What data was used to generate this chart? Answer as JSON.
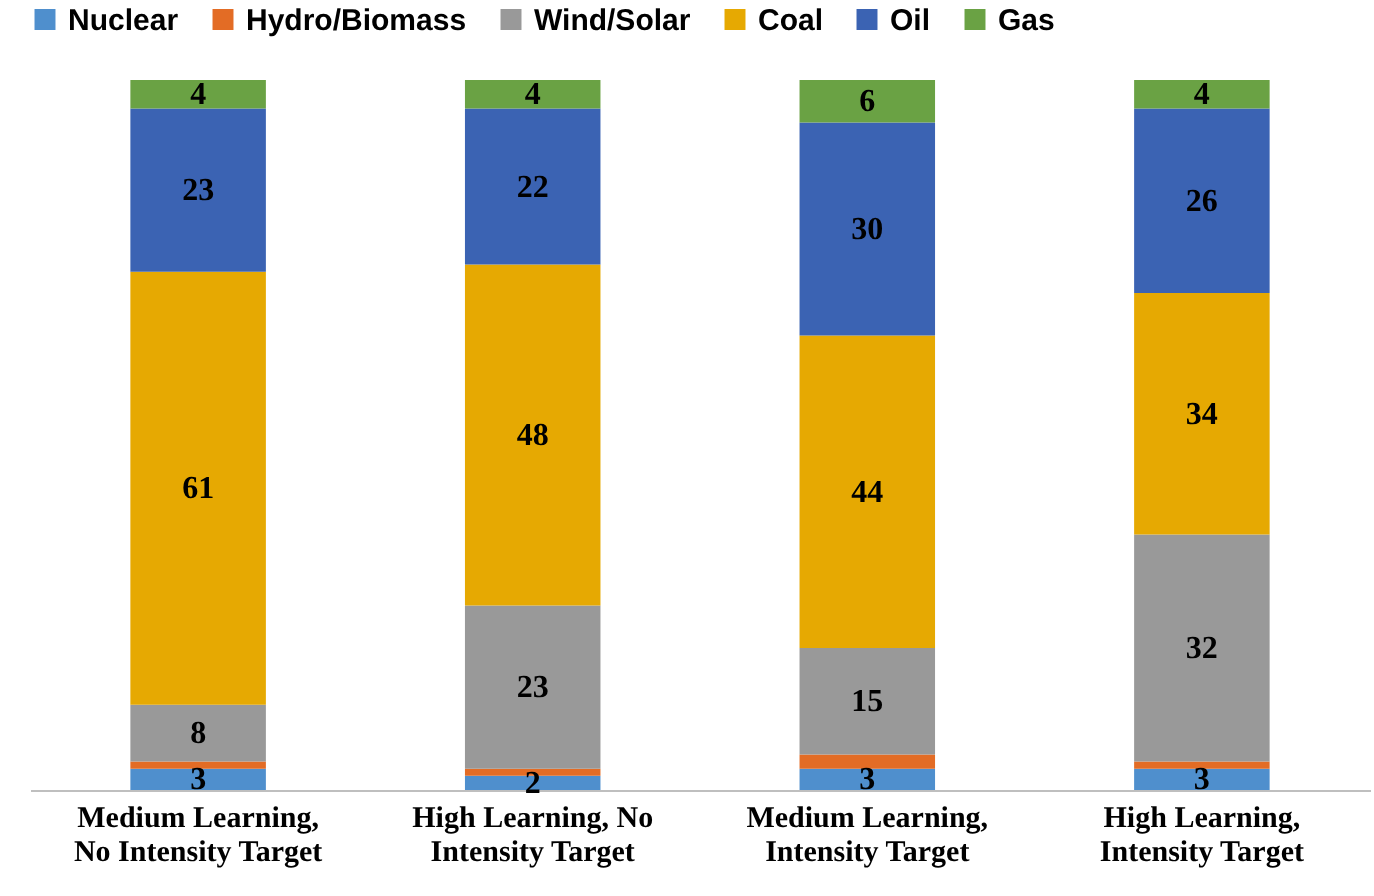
{
  "chart_data": {
    "type": "bar",
    "stacked": true,
    "legend": "top left",
    "grid": false,
    "ylim": [
      0,
      100
    ],
    "tick_labels": "x",
    "categories": [
      "Medium Learning,\nNo Intensity Target",
      "High Learning, No\nIntensity Target",
      "Medium Learning,\nIntensity  Target",
      "High Learning,\nIntensity Target"
    ],
    "series": [
      {
        "name": "Nuclear",
        "color": "#4f8fcd",
        "values": [
          3,
          2,
          3,
          3
        ],
        "value_labels": [
          "3",
          "2",
          "3",
          "3"
        ]
      },
      {
        "name": "Hydro/Biomass",
        "color": "#e36c25",
        "values": [
          1,
          1,
          2,
          1
        ],
        "value_labels": [
          null,
          null,
          null,
          null
        ]
      },
      {
        "name": "Wind/Solar",
        "color": "#999999",
        "values": [
          8,
          23,
          15,
          32
        ],
        "value_labels": [
          "8",
          "23",
          "15",
          "32"
        ]
      },
      {
        "name": "Coal",
        "color": "#e6a902",
        "values": [
          61,
          48,
          44,
          34
        ],
        "value_labels": [
          "61",
          "48",
          "44",
          "34"
        ]
      },
      {
        "name": "Oil",
        "color": "#3b63b3",
        "values": [
          23,
          22,
          30,
          26
        ],
        "value_labels": [
          "23",
          "22",
          "30",
          "26"
        ]
      },
      {
        "name": "Gas",
        "color": "#6aa244",
        "values": [
          4,
          4,
          6,
          4
        ],
        "value_labels": [
          "4",
          "4",
          "6",
          "4"
        ]
      }
    ]
  }
}
